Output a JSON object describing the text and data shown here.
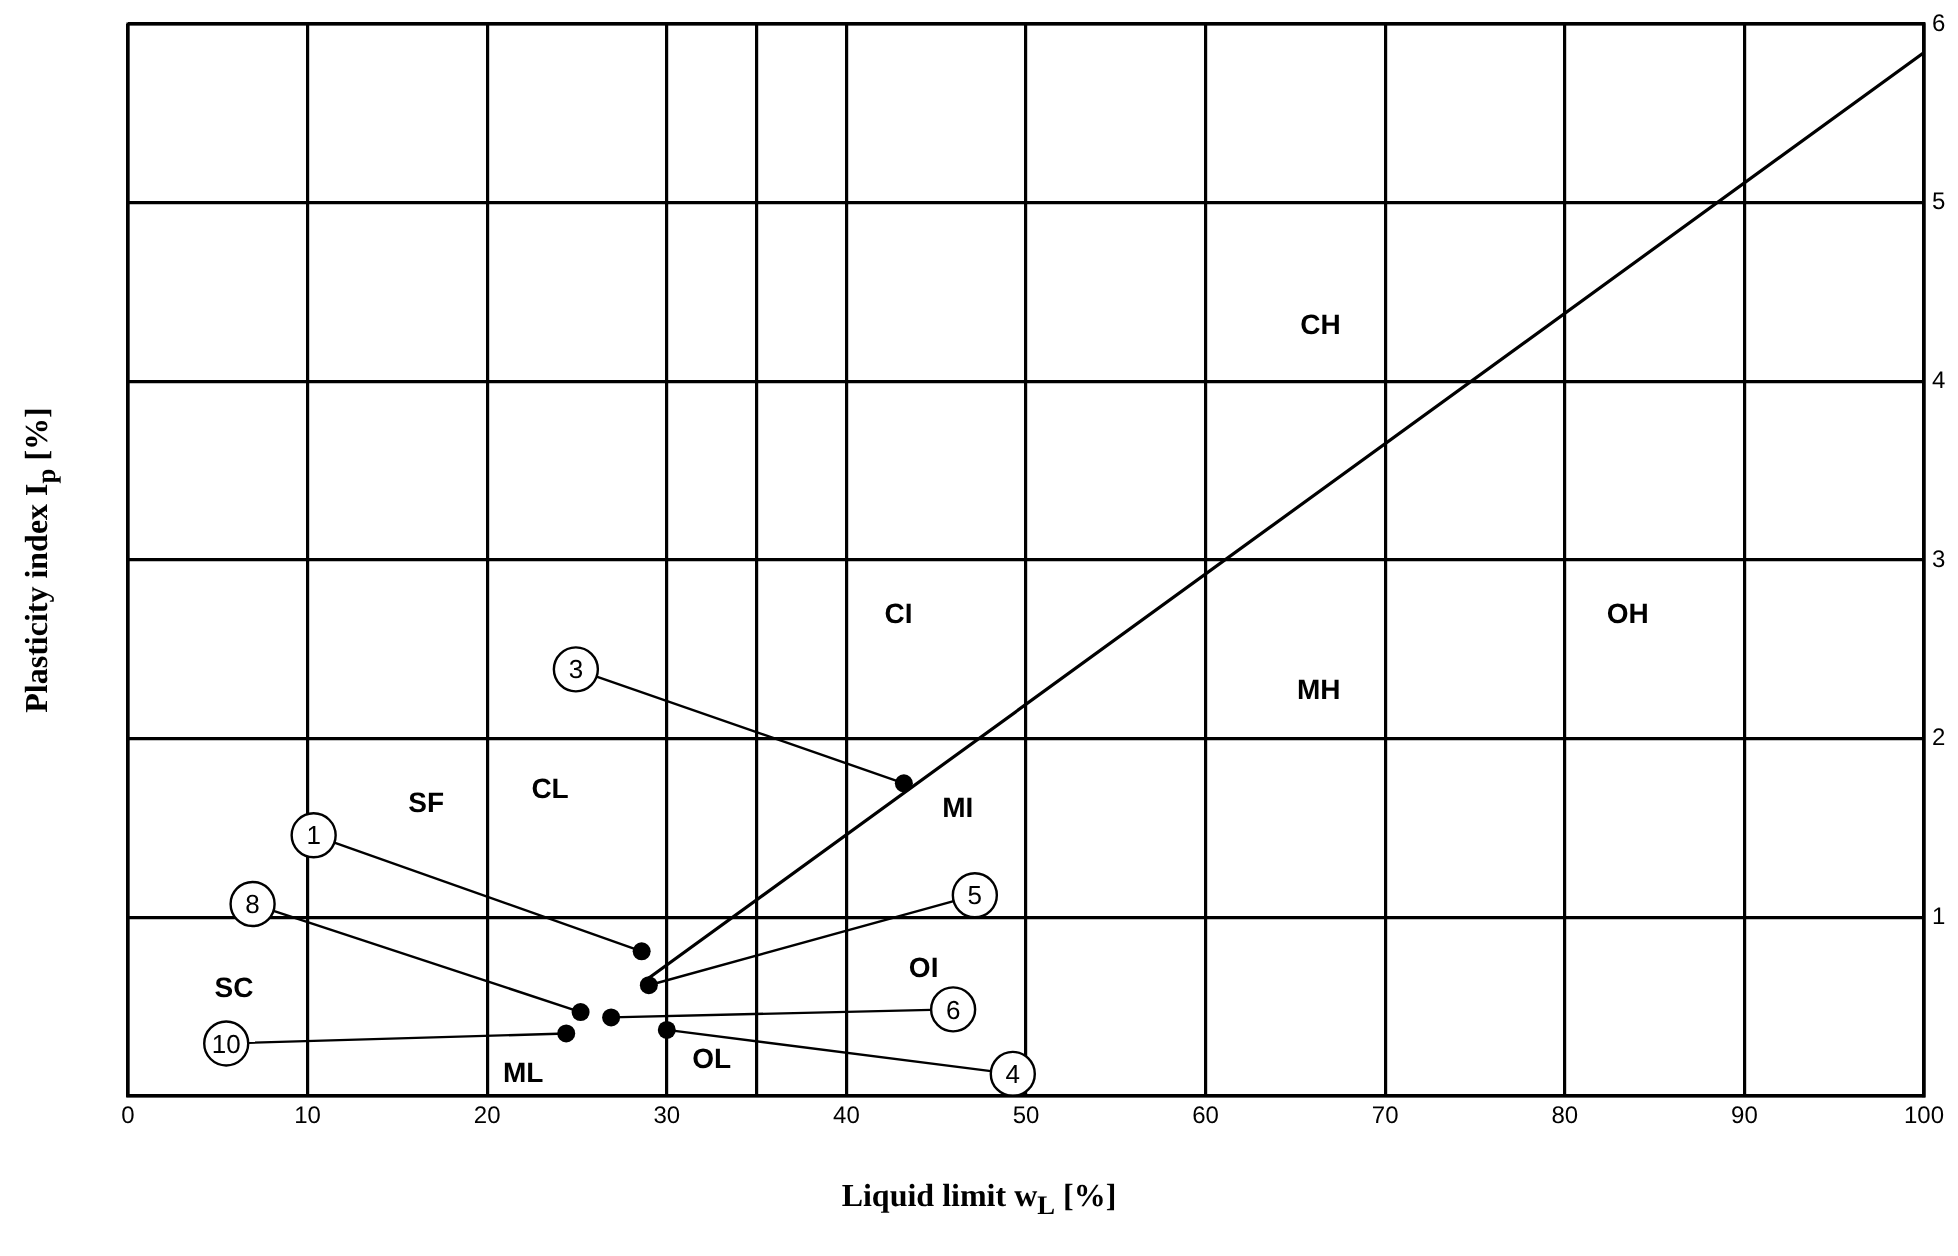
{
  "chart_data": {
    "type": "scatter",
    "xlabel": "Liquid limit   w$_{L}$ [%]",
    "ylabel": "Plasticity index  I$_{p}$ [%]",
    "xlim": [
      0,
      100
    ],
    "xticks": [
      0,
      10,
      20,
      30,
      {
        "value": 35,
        "label": null
      },
      40,
      50,
      60,
      70,
      80,
      90,
      100
    ],
    "ylim": [
      0,
      6
    ],
    "yticks": [
      1,
      2,
      3,
      4,
      5,
      6
    ],
    "grid": true,
    "legend": false,
    "marker": "circle",
    "series": [
      {
        "color": "#000000",
        "x": [
          28.6,
          43.2,
          30.0,
          29.0,
          26.9,
          25.2,
          24.4
        ],
        "values": [
          0.81,
          1.75,
          0.37,
          0.62,
          0.44,
          0.47,
          0.35
        ]
      },
      {
        "type": "line",
        "color": "#000000",
        "marker": "none",
        "line_style": "solid",
        "x": [
          29,
          100
        ],
        "values": [
          0.66,
          5.84
        ]
      }
    ],
    "annotations": [
      {
        "text": "1",
        "x": 28.6,
        "y": 0.81
      },
      {
        "text": "3",
        "x": 43.2,
        "y": 1.75
      },
      {
        "text": "4",
        "x": 30.0,
        "y": 0.37
      },
      {
        "text": "5",
        "x": 29.0,
        "y": 0.62
      },
      {
        "text": "6",
        "x": 26.9,
        "y": 0.44
      },
      {
        "text": "8",
        "x": 25.2,
        "y": 0.47
      },
      {
        "text": "10",
        "x": 24.4,
        "y": 0.35
      },
      "CH",
      "CI",
      "OH",
      "MH",
      "MI",
      "SF",
      "CL",
      "SC",
      "OI",
      "ML",
      "OL"
    ]
  }
}
